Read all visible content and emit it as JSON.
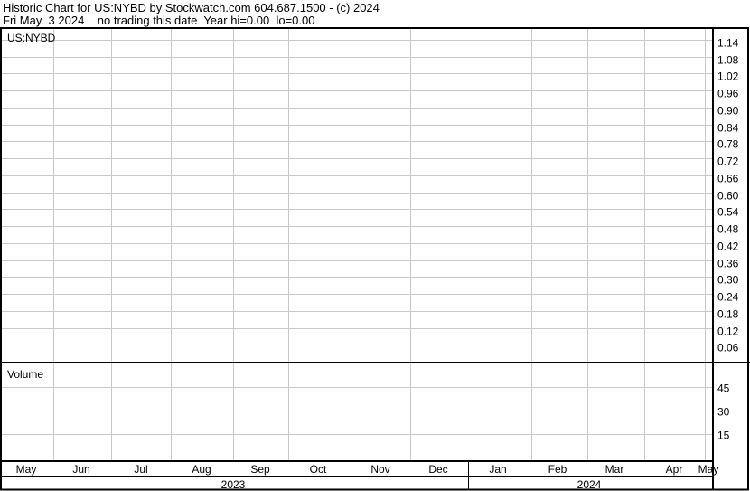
{
  "header": {
    "line1": "Historic Chart for US:NYBD by Stockwatch.com 604.687.1500 - (c) 2024",
    "line2": "Fri May  3 2024    no trading this date  Year hi=0.00  lo=0.00"
  },
  "chart_data": [
    {
      "type": "line",
      "title": "US:NYBD",
      "x_tick_labels": [
        "May",
        "Jun",
        "Jul",
        "Aug",
        "Sep",
        "Oct",
        "Nov",
        "Dec",
        "Jan",
        "Feb",
        "Mar",
        "Apr",
        "May"
      ],
      "x_group_labels": [
        "2023",
        "2024"
      ],
      "y_tick_labels": [
        "1.14",
        "1.08",
        "1.02",
        "0.96",
        "0.90",
        "0.84",
        "0.78",
        "0.72",
        "0.66",
        "0.60",
        "0.54",
        "0.48",
        "0.42",
        "0.36",
        "0.30",
        "0.24",
        "0.18",
        "0.12",
        "0.06"
      ],
      "ylim": [
        0,
        1.2
      ],
      "grid": true,
      "series": []
    },
    {
      "type": "bar",
      "title": "Volume",
      "y_tick_labels": [
        "45",
        "30",
        "15"
      ],
      "ylim": [
        0,
        60
      ],
      "grid": true,
      "series": []
    }
  ],
  "colors": {
    "grid": "#c8c8c8",
    "frame": "#000000",
    "background": "#ffffff"
  }
}
